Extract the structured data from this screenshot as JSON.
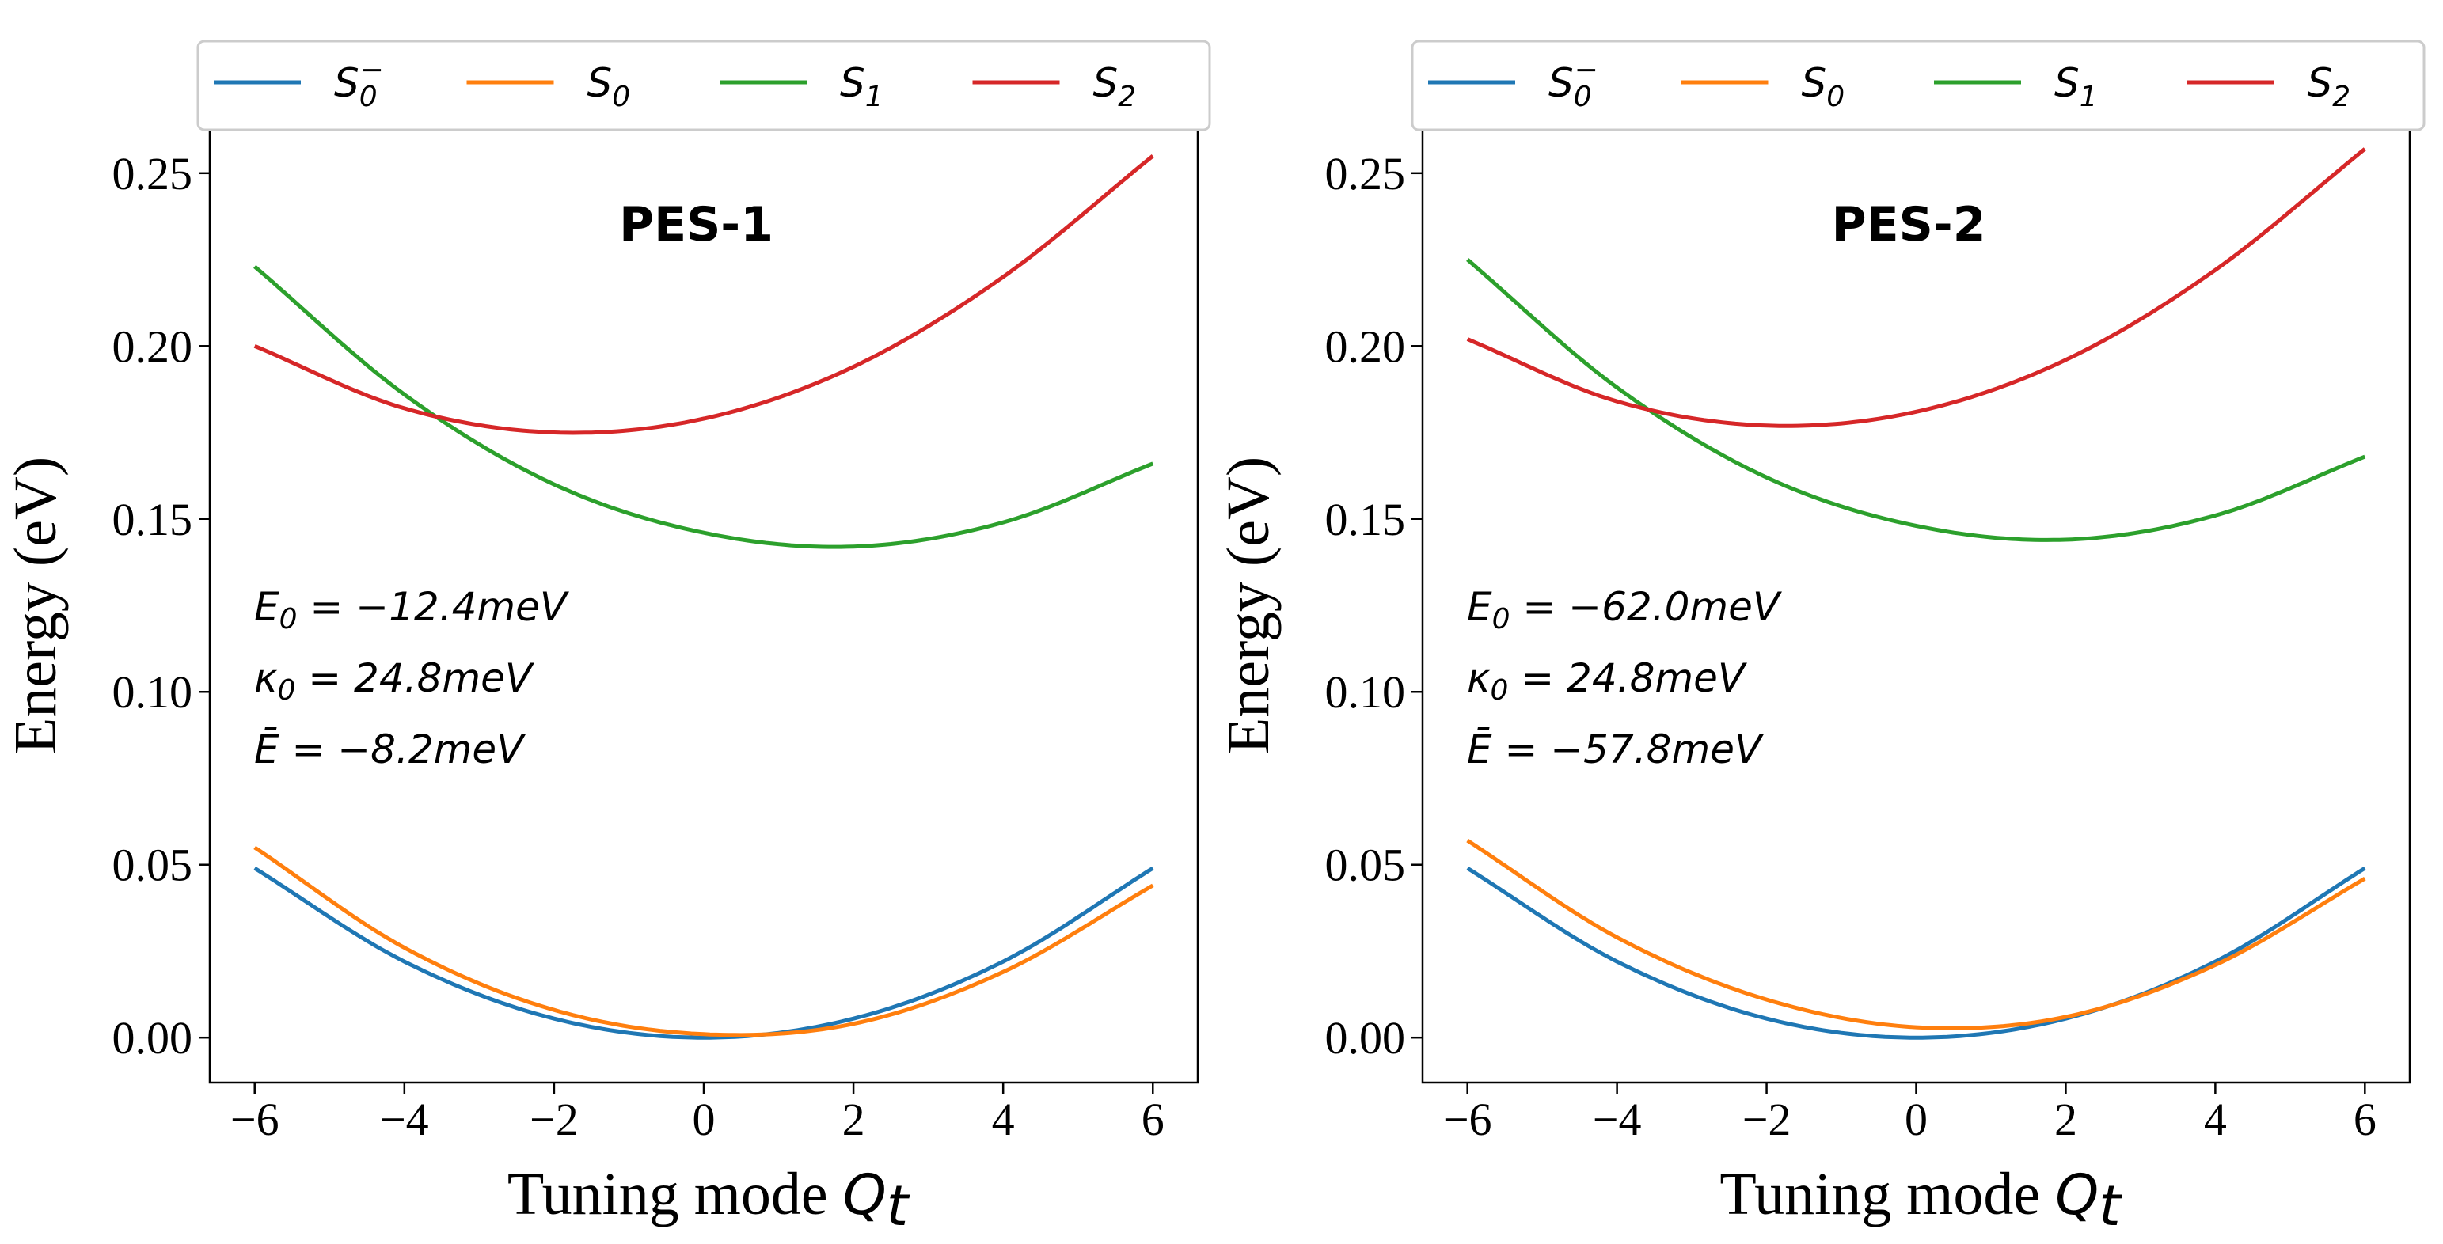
{
  "chart_data": [
    {
      "type": "line",
      "title": "PES-1",
      "xlabel": "Tuning mode",
      "xlabel_symbol": "Q",
      "xlabel_sub": "t",
      "ylabel": "Energy (eV)",
      "xlim": [
        -6.6,
        6.6
      ],
      "ylim": [
        -0.013,
        0.263
      ],
      "xticks": [
        -6,
        -4,
        -2,
        0,
        2,
        4,
        6
      ],
      "xtick_labels": [
        "−6",
        "−4",
        "−2",
        "0",
        "2",
        "4",
        "6"
      ],
      "yticks": [
        0.0,
        0.05,
        0.1,
        0.15,
        0.2,
        0.25
      ],
      "ytick_labels": [
        "0.00",
        "0.05",
        "0.10",
        "0.15",
        "0.20",
        "0.25"
      ],
      "legend": {
        "placement": "top (above axes)",
        "entries": [
          "S0−",
          "S0",
          "S1",
          "S2"
        ]
      },
      "annotations": [
        "E0 = −12.4meV",
        "κ0 = 24.8meV",
        "Ē = −8.2meV"
      ],
      "series": [
        {
          "name": "S0−",
          "color": "#1f77b4",
          "x": [
            -6,
            -4,
            -2,
            0,
            2,
            4,
            6
          ],
          "values": [
            0.049,
            0.022,
            0.0055,
            0.0,
            0.0055,
            0.022,
            0.049
          ]
        },
        {
          "name": "S0",
          "color": "#ff7f0e",
          "x": [
            -6,
            -4,
            -2,
            0,
            2,
            4,
            6
          ],
          "values": [
            0.055,
            0.026,
            0.008,
            0.001,
            0.004,
            0.019,
            0.044
          ]
        },
        {
          "name": "S1",
          "color": "#2ca02c",
          "x": [
            -6,
            -4,
            -2,
            0,
            2,
            4,
            6
          ],
          "values": [
            0.223,
            0.186,
            0.16,
            0.146,
            0.142,
            0.149,
            0.166
          ]
        },
        {
          "name": "S2",
          "color": "#d62728",
          "x": [
            -6,
            -4,
            -2,
            0,
            2,
            4,
            6
          ],
          "values": [
            0.2,
            0.182,
            0.175,
            0.179,
            0.194,
            0.22,
            0.255
          ]
        }
      ]
    },
    {
      "type": "line",
      "title": "PES-2",
      "xlabel": "Tuning mode",
      "xlabel_symbol": "Q",
      "xlabel_sub": "t",
      "ylabel": "Energy (eV)",
      "xlim": [
        -6.6,
        6.6
      ],
      "ylim": [
        -0.013,
        0.263
      ],
      "xticks": [
        -6,
        -4,
        -2,
        0,
        2,
        4,
        6
      ],
      "xtick_labels": [
        "−6",
        "−4",
        "−2",
        "0",
        "2",
        "4",
        "6"
      ],
      "yticks": [
        0.0,
        0.05,
        0.1,
        0.15,
        0.2,
        0.25
      ],
      "ytick_labels": [
        "0.00",
        "0.05",
        "0.10",
        "0.15",
        "0.20",
        "0.25"
      ],
      "legend": {
        "placement": "top (above axes)",
        "entries": [
          "S0−",
          "S0",
          "S1",
          "S2"
        ]
      },
      "annotations": [
        "E0 = −62.0meV",
        "κ0 = 24.8meV",
        "Ē = −57.8meV"
      ],
      "series": [
        {
          "name": "S0−",
          "color": "#1f77b4",
          "x": [
            -6,
            -4,
            -2,
            0,
            2,
            4,
            6
          ],
          "values": [
            0.049,
            0.022,
            0.0055,
            0.0,
            0.0055,
            0.022,
            0.049
          ]
        },
        {
          "name": "S0",
          "color": "#ff7f0e",
          "x": [
            -6,
            -4,
            -2,
            0,
            2,
            4,
            6
          ],
          "values": [
            0.057,
            0.029,
            0.011,
            0.003,
            0.006,
            0.021,
            0.046
          ]
        },
        {
          "name": "S1",
          "color": "#2ca02c",
          "x": [
            -6,
            -4,
            -2,
            0,
            2,
            4,
            6
          ],
          "values": [
            0.225,
            0.188,
            0.162,
            0.148,
            0.144,
            0.151,
            0.168
          ]
        },
        {
          "name": "S2",
          "color": "#d62728",
          "x": [
            -6,
            -4,
            -2,
            0,
            2,
            4,
            6
          ],
          "values": [
            0.202,
            0.184,
            0.177,
            0.181,
            0.196,
            0.222,
            0.257
          ]
        }
      ]
    }
  ]
}
